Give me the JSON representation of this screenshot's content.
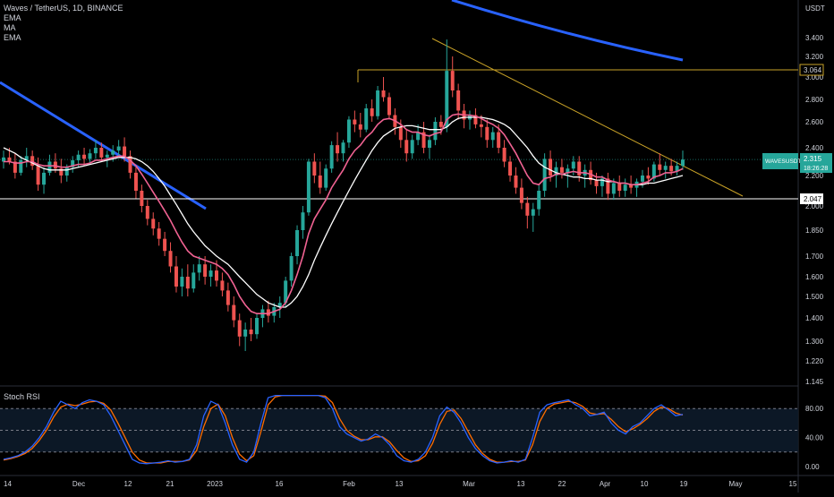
{
  "legend": {
    "title": "Waves / TetherUS, 1D, BINANCE",
    "indicators": [
      "EMA",
      "MA",
      "EMA"
    ]
  },
  "price_axis": {
    "unit": "USDT",
    "ticks": [
      "3.400",
      "3.200",
      "3.000",
      "2.800",
      "2.600",
      "2.400",
      "2.200",
      "2.000",
      "1.850",
      "1.700",
      "1.600",
      "1.500",
      "1.400",
      "1.300",
      "1.220",
      "1.145"
    ],
    "level_labels": [
      {
        "name": "resistance",
        "value": "3.064"
      },
      {
        "name": "support",
        "value": "2.047"
      }
    ],
    "symbol_tag": {
      "symbol": "WAVESUSDT",
      "price": "2.315",
      "countdown": "18:26:28"
    }
  },
  "rsi_axis": {
    "title": "Stoch RSI",
    "ticks": [
      "80.00",
      "40.00",
      "0.00"
    ]
  },
  "time_axis": [
    "14",
    "Dec",
    "12",
    "21",
    "2023",
    "16",
    "Feb",
    "13",
    "Mar",
    "13",
    "22",
    "Apr",
    "10",
    "19",
    "May",
    "15"
  ],
  "colors": {
    "bg": "#000000",
    "up": "#26a69a",
    "down": "#ef5350",
    "ema_fast": "#f06292",
    "ma": "#ffffff",
    "trend_blue": "#2962ff",
    "trend_gold": "#c9a227",
    "rsi_k": "#2962ff",
    "rsi_d": "#ff6d00"
  },
  "chart_data": {
    "type": "candlestick",
    "ohlc": [
      [
        2.3,
        2.38,
        2.25,
        2.33
      ],
      [
        2.33,
        2.4,
        2.28,
        2.3
      ],
      [
        2.3,
        2.36,
        2.18,
        2.22
      ],
      [
        2.22,
        2.34,
        2.2,
        2.31
      ],
      [
        2.31,
        2.4,
        2.26,
        2.34
      ],
      [
        2.34,
        2.38,
        2.24,
        2.27
      ],
      [
        2.27,
        2.33,
        2.1,
        2.14
      ],
      [
        2.14,
        2.26,
        2.08,
        2.22
      ],
      [
        2.22,
        2.35,
        2.2,
        2.3
      ],
      [
        2.3,
        2.36,
        2.22,
        2.25
      ],
      [
        2.25,
        2.32,
        2.15,
        2.2
      ],
      [
        2.2,
        2.28,
        2.16,
        2.26
      ],
      [
        2.26,
        2.34,
        2.22,
        2.31
      ],
      [
        2.31,
        2.38,
        2.26,
        2.35
      ],
      [
        2.35,
        2.4,
        2.28,
        2.32
      ],
      [
        2.32,
        2.39,
        2.28,
        2.36
      ],
      [
        2.36,
        2.46,
        2.32,
        2.4
      ],
      [
        2.4,
        2.44,
        2.3,
        2.33
      ],
      [
        2.33,
        2.38,
        2.26,
        2.35
      ],
      [
        2.35,
        2.42,
        2.3,
        2.38
      ],
      [
        2.38,
        2.46,
        2.34,
        2.41
      ],
      [
        2.41,
        2.48,
        2.3,
        2.34
      ],
      [
        2.34,
        2.38,
        2.18,
        2.22
      ],
      [
        2.22,
        2.26,
        2.05,
        2.1
      ],
      [
        2.1,
        2.14,
        1.96,
        2.0
      ],
      [
        2.0,
        2.04,
        1.88,
        1.92
      ],
      [
        1.92,
        1.96,
        1.82,
        1.86
      ],
      [
        1.86,
        1.9,
        1.76,
        1.8
      ],
      [
        1.8,
        1.84,
        1.7,
        1.73
      ],
      [
        1.73,
        1.78,
        1.62,
        1.65
      ],
      [
        1.65,
        1.7,
        1.52,
        1.55
      ],
      [
        1.55,
        1.64,
        1.5,
        1.6
      ],
      [
        1.6,
        1.66,
        1.5,
        1.54
      ],
      [
        1.54,
        1.66,
        1.52,
        1.62
      ],
      [
        1.62,
        1.7,
        1.58,
        1.66
      ],
      [
        1.66,
        1.7,
        1.56,
        1.6
      ],
      [
        1.6,
        1.66,
        1.55,
        1.63
      ],
      [
        1.63,
        1.68,
        1.55,
        1.58
      ],
      [
        1.58,
        1.62,
        1.5,
        1.53
      ],
      [
        1.53,
        1.57,
        1.43,
        1.46
      ],
      [
        1.46,
        1.5,
        1.36,
        1.39
      ],
      [
        1.39,
        1.42,
        1.28,
        1.32
      ],
      [
        1.32,
        1.38,
        1.26,
        1.35
      ],
      [
        1.35,
        1.4,
        1.3,
        1.33
      ],
      [
        1.33,
        1.42,
        1.31,
        1.4
      ],
      [
        1.4,
        1.46,
        1.36,
        1.44
      ],
      [
        1.44,
        1.48,
        1.38,
        1.41
      ],
      [
        1.41,
        1.47,
        1.38,
        1.45
      ],
      [
        1.45,
        1.5,
        1.4,
        1.47
      ],
      [
        1.47,
        1.6,
        1.45,
        1.58
      ],
      [
        1.58,
        1.72,
        1.55,
        1.7
      ],
      [
        1.7,
        1.88,
        1.66,
        1.85
      ],
      [
        1.85,
        2.0,
        1.8,
        1.96
      ],
      [
        1.96,
        2.32,
        1.94,
        2.3
      ],
      [
        2.3,
        2.36,
        2.15,
        2.2
      ],
      [
        2.2,
        2.3,
        2.08,
        2.12
      ],
      [
        2.12,
        2.28,
        2.1,
        2.25
      ],
      [
        2.25,
        2.45,
        2.22,
        2.42
      ],
      [
        2.42,
        2.52,
        2.3,
        2.36
      ],
      [
        2.36,
        2.46,
        2.3,
        2.44
      ],
      [
        2.44,
        2.65,
        2.4,
        2.62
      ],
      [
        2.62,
        2.7,
        2.52,
        2.58
      ],
      [
        2.58,
        2.68,
        2.48,
        2.54
      ],
      [
        2.54,
        2.76,
        2.52,
        2.72
      ],
      [
        2.72,
        2.8,
        2.6,
        2.65
      ],
      [
        2.65,
        2.92,
        2.62,
        2.88
      ],
      [
        2.88,
        3.0,
        2.78,
        2.82
      ],
      [
        2.82,
        2.86,
        2.62,
        2.66
      ],
      [
        2.66,
        2.72,
        2.5,
        2.56
      ],
      [
        2.56,
        2.62,
        2.4,
        2.46
      ],
      [
        2.46,
        2.54,
        2.3,
        2.36
      ],
      [
        2.36,
        2.5,
        2.32,
        2.46
      ],
      [
        2.46,
        2.58,
        2.42,
        2.52
      ],
      [
        2.52,
        2.6,
        2.36,
        2.4
      ],
      [
        2.4,
        2.5,
        2.32,
        2.46
      ],
      [
        2.46,
        2.64,
        2.42,
        2.6
      ],
      [
        2.6,
        2.66,
        2.5,
        2.56
      ],
      [
        2.56,
        3.38,
        2.52,
        3.06
      ],
      [
        3.06,
        3.2,
        2.82,
        2.88
      ],
      [
        2.88,
        2.94,
        2.62,
        2.7
      ],
      [
        2.7,
        2.76,
        2.55,
        2.62
      ],
      [
        2.62,
        2.7,
        2.54,
        2.66
      ],
      [
        2.66,
        2.72,
        2.55,
        2.58
      ],
      [
        2.58,
        2.66,
        2.48,
        2.56
      ],
      [
        2.56,
        2.62,
        2.4,
        2.46
      ],
      [
        2.46,
        2.56,
        2.4,
        2.52
      ],
      [
        2.52,
        2.58,
        2.36,
        2.4
      ],
      [
        2.4,
        2.46,
        2.26,
        2.3
      ],
      [
        2.3,
        2.34,
        2.16,
        2.2
      ],
      [
        2.2,
        2.26,
        2.08,
        2.12
      ],
      [
        2.12,
        2.18,
        1.98,
        2.02
      ],
      [
        2.02,
        2.06,
        1.86,
        1.94
      ],
      [
        1.94,
        2.02,
        1.84,
        1.98
      ],
      [
        1.98,
        2.14,
        1.94,
        2.1
      ],
      [
        2.1,
        2.36,
        2.06,
        2.32
      ],
      [
        2.32,
        2.38,
        2.16,
        2.2
      ],
      [
        2.2,
        2.3,
        2.12,
        2.26
      ],
      [
        2.26,
        2.32,
        2.18,
        2.22
      ],
      [
        2.22,
        2.28,
        2.12,
        2.25
      ],
      [
        2.25,
        2.34,
        2.2,
        2.3
      ],
      [
        2.3,
        2.34,
        2.16,
        2.2
      ],
      [
        2.2,
        2.28,
        2.12,
        2.24
      ],
      [
        2.24,
        2.3,
        2.14,
        2.17
      ],
      [
        2.17,
        2.22,
        2.08,
        2.13
      ],
      [
        2.13,
        2.2,
        2.06,
        2.18
      ],
      [
        2.18,
        2.22,
        2.04,
        2.08
      ],
      [
        2.08,
        2.18,
        2.04,
        2.15
      ],
      [
        2.15,
        2.2,
        2.06,
        2.1
      ],
      [
        2.1,
        2.18,
        2.06,
        2.14
      ],
      [
        2.14,
        2.2,
        2.08,
        2.12
      ],
      [
        2.12,
        2.18,
        2.06,
        2.16
      ],
      [
        2.16,
        2.24,
        2.12,
        2.2
      ],
      [
        2.2,
        2.26,
        2.14,
        2.18
      ],
      [
        2.18,
        2.3,
        2.16,
        2.28
      ],
      [
        2.28,
        2.36,
        2.2,
        2.24
      ],
      [
        2.24,
        2.3,
        2.18,
        2.27
      ],
      [
        2.27,
        2.32,
        2.2,
        2.23
      ],
      [
        2.23,
        2.3,
        2.2,
        2.27
      ],
      [
        2.27,
        2.38,
        2.24,
        2.315
      ]
    ],
    "ema": [
      2.3,
      2.3,
      2.29,
      2.29,
      2.3,
      2.3,
      2.28,
      2.27,
      2.27,
      2.27,
      2.26,
      2.26,
      2.27,
      2.28,
      2.28,
      2.29,
      2.31,
      2.31,
      2.32,
      2.33,
      2.34,
      2.34,
      2.31,
      2.27,
      2.21,
      2.15,
      2.09,
      2.03,
      1.97,
      1.91,
      1.84,
      1.78,
      1.73,
      1.7,
      1.69,
      1.68,
      1.67,
      1.66,
      1.64,
      1.61,
      1.56,
      1.5,
      1.46,
      1.43,
      1.42,
      1.42,
      1.42,
      1.43,
      1.44,
      1.47,
      1.53,
      1.61,
      1.7,
      1.83,
      1.92,
      1.98,
      2.04,
      2.12,
      2.18,
      2.24,
      2.32,
      2.38,
      2.42,
      2.48,
      2.52,
      2.58,
      2.62,
      2.63,
      2.61,
      2.58,
      2.54,
      2.52,
      2.52,
      2.5,
      2.49,
      2.51,
      2.52,
      2.62,
      2.66,
      2.67,
      2.66,
      2.66,
      2.65,
      2.63,
      2.6,
      2.58,
      2.55,
      2.5,
      2.43,
      2.36,
      2.28,
      2.2,
      2.15,
      2.14,
      2.18,
      2.19,
      2.21,
      2.21,
      2.22,
      2.23,
      2.22,
      2.22,
      2.21,
      2.19,
      2.19,
      2.17,
      2.16,
      2.15,
      2.15,
      2.14,
      2.14,
      2.15,
      2.16,
      2.19,
      2.2,
      2.22,
      2.22,
      2.23,
      2.25
    ],
    "ma": [
      2.4,
      2.38,
      2.36,
      2.33,
      2.31,
      2.29,
      2.27,
      2.25,
      2.24,
      2.24,
      2.24,
      2.24,
      2.25,
      2.26,
      2.27,
      2.28,
      2.29,
      2.3,
      2.31,
      2.32,
      2.33,
      2.33,
      2.33,
      2.32,
      2.3,
      2.27,
      2.23,
      2.18,
      2.13,
      2.07,
      2.01,
      1.95,
      1.89,
      1.84,
      1.8,
      1.76,
      1.73,
      1.7,
      1.68,
      1.66,
      1.63,
      1.6,
      1.57,
      1.54,
      1.51,
      1.49,
      1.47,
      1.46,
      1.45,
      1.45,
      1.47,
      1.5,
      1.55,
      1.61,
      1.68,
      1.75,
      1.82,
      1.89,
      1.96,
      2.03,
      2.1,
      2.17,
      2.24,
      2.31,
      2.38,
      2.44,
      2.49,
      2.52,
      2.55,
      2.56,
      2.57,
      2.57,
      2.56,
      2.55,
      2.54,
      2.54,
      2.54,
      2.56,
      2.6,
      2.63,
      2.64,
      2.64,
      2.64,
      2.64,
      2.63,
      2.62,
      2.6,
      2.58,
      2.55,
      2.5,
      2.45,
      2.4,
      2.34,
      2.29,
      2.26,
      2.24,
      2.22,
      2.21,
      2.2,
      2.19,
      2.19,
      2.18,
      2.18,
      2.17,
      2.17,
      2.16,
      2.16,
      2.15,
      2.15,
      2.14,
      2.14,
      2.14,
      2.15,
      2.15,
      2.16,
      2.17,
      2.18,
      2.19,
      2.2
    ],
    "stoch_k": [
      10,
      12,
      15,
      20,
      28,
      40,
      55,
      75,
      90,
      85,
      80,
      88,
      92,
      90,
      85,
      70,
      50,
      30,
      10,
      5,
      4,
      5,
      6,
      8,
      6,
      7,
      10,
      30,
      70,
      90,
      85,
      60,
      30,
      10,
      6,
      20,
      60,
      95,
      98,
      98,
      98,
      98,
      98,
      98,
      98,
      95,
      80,
      55,
      45,
      40,
      35,
      38,
      45,
      40,
      30,
      15,
      8,
      6,
      10,
      20,
      40,
      70,
      82,
      75,
      60,
      40,
      25,
      15,
      8,
      5,
      6,
      8,
      6,
      10,
      40,
      75,
      85,
      88,
      90,
      92,
      85,
      80,
      70,
      72,
      75,
      60,
      50,
      45,
      55,
      60,
      70,
      80,
      85,
      78,
      70,
      72
    ],
    "stoch_d": [
      9,
      11,
      14,
      18,
      25,
      36,
      50,
      68,
      82,
      86,
      84,
      86,
      89,
      90,
      87,
      78,
      60,
      40,
      20,
      9,
      5,
      5,
      5,
      7,
      7,
      7,
      9,
      22,
      55,
      80,
      86,
      70,
      40,
      17,
      8,
      15,
      48,
      85,
      96,
      98,
      98,
      98,
      98,
      98,
      98,
      97,
      88,
      66,
      50,
      42,
      37,
      37,
      41,
      41,
      34,
      22,
      12,
      7,
      8,
      15,
      32,
      58,
      76,
      78,
      66,
      48,
      30,
      18,
      10,
      6,
      6,
      7,
      7,
      9,
      30,
      62,
      80,
      86,
      88,
      90,
      88,
      83,
      74,
      72,
      73,
      65,
      55,
      48,
      52,
      58,
      66,
      76,
      82,
      80,
      74,
      71
    ]
  }
}
